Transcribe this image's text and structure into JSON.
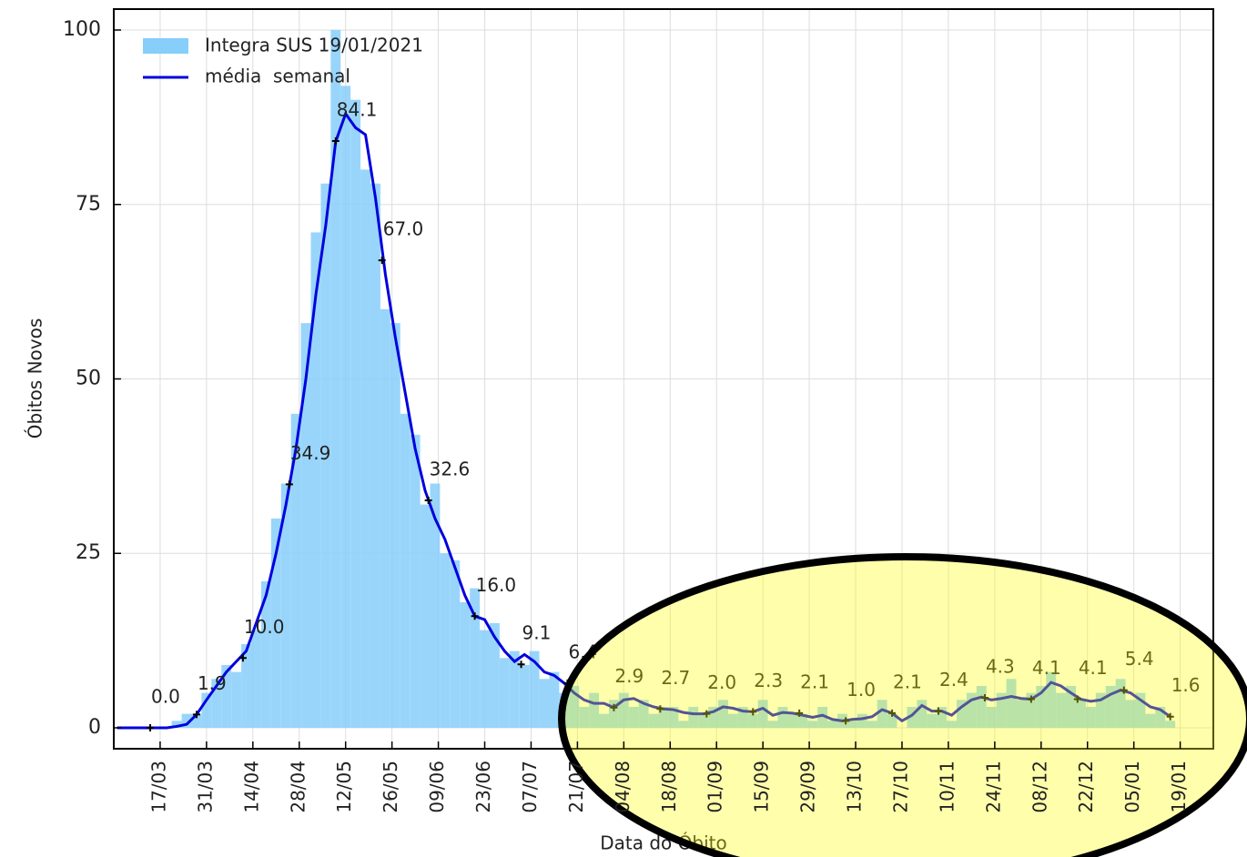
{
  "chart_data": {
    "type": "bar",
    "xlabel": "Data do Óbito",
    "ylabel": "Óbitos Novos",
    "xlim": [
      -14,
      318
    ],
    "ylim": [
      -3,
      103
    ],
    "yticks": [
      0,
      25,
      50,
      75,
      100
    ],
    "xticks": [
      {
        "value": 0,
        "label": "17/03"
      },
      {
        "value": 14,
        "label": "31/03"
      },
      {
        "value": 28,
        "label": "14/04"
      },
      {
        "value": 42,
        "label": "28/04"
      },
      {
        "value": 56,
        "label": "12/05"
      },
      {
        "value": 70,
        "label": "26/05"
      },
      {
        "value": 84,
        "label": "09/06"
      },
      {
        "value": 98,
        "label": "23/06"
      },
      {
        "value": 112,
        "label": "07/07"
      },
      {
        "value": 126,
        "label": "21/07"
      },
      {
        "value": 140,
        "label": "04/08"
      },
      {
        "value": 154,
        "label": "18/08"
      },
      {
        "value": 168,
        "label": "01/09"
      },
      {
        "value": 182,
        "label": "15/09"
      },
      {
        "value": 196,
        "label": "29/09"
      },
      {
        "value": 210,
        "label": "13/10"
      },
      {
        "value": 224,
        "label": "27/10"
      },
      {
        "value": 238,
        "label": "10/11"
      },
      {
        "value": 252,
        "label": "24/11"
      },
      {
        "value": 266,
        "label": "08/12"
      },
      {
        "value": 280,
        "label": "22/12"
      },
      {
        "value": 294,
        "label": "05/01"
      },
      {
        "value": 308,
        "label": "19/01"
      }
    ],
    "grid": true,
    "legend": "upper left",
    "x": [
      -13,
      -10,
      -7,
      -4,
      -1,
      2,
      5,
      8,
      11,
      14,
      17,
      20,
      23,
      26,
      29,
      32,
      35,
      38,
      41,
      44,
      47,
      50,
      53,
      56,
      59,
      62,
      65,
      68,
      71,
      74,
      77,
      80,
      83,
      86,
      89,
      92,
      95,
      98,
      101,
      104,
      107,
      110,
      113,
      116,
      119,
      122,
      125,
      128,
      131,
      134,
      137,
      140,
      143,
      146,
      149,
      152,
      155,
      158,
      161,
      164,
      167,
      170,
      173,
      176,
      179,
      182,
      185,
      188,
      191,
      194,
      197,
      200,
      203,
      206,
      209,
      212,
      215,
      218,
      221,
      224,
      227,
      230,
      233,
      236,
      239,
      242,
      245,
      248,
      251,
      254,
      257,
      260,
      263,
      266,
      269,
      272,
      275,
      278,
      281,
      284,
      287,
      290,
      293,
      296,
      299,
      302,
      305
    ],
    "series": [
      {
        "name": "Integra SUS 19/01/2021",
        "type": "bar",
        "color": "#87cefa",
        "values": [
          0,
          0,
          0,
          0,
          0,
          0,
          1,
          2,
          2,
          5,
          7,
          9,
          8,
          12,
          14,
          21,
          30,
          35,
          45,
          58,
          71,
          78,
          100,
          92,
          90,
          80,
          78,
          60,
          58,
          45,
          42,
          32,
          35,
          25,
          24,
          18,
          20,
          14,
          15,
          10,
          11,
          9,
          11,
          7,
          8,
          5,
          6,
          3,
          5,
          2,
          4,
          5,
          3,
          4,
          2,
          3,
          3,
          1,
          3,
          2,
          3,
          4,
          2,
          3,
          2,
          4,
          1,
          3,
          2,
          2,
          1,
          3,
          1,
          2,
          1,
          2,
          1,
          4,
          2,
          0,
          3,
          4,
          2,
          3,
          1,
          4,
          5,
          6,
          3,
          5,
          7,
          4,
          5,
          6,
          8,
          5,
          6,
          4,
          3,
          5,
          6,
          7,
          4,
          5,
          2,
          3,
          1
        ]
      },
      {
        "name": "média  semanal",
        "type": "line",
        "color": "#0000dd",
        "values": [
          0,
          0,
          0,
          0,
          0,
          0,
          0.2,
          0.5,
          1.9,
          4,
          6,
          8,
          9.5,
          11,
          15,
          19,
          25,
          32,
          40,
          50,
          62,
          72,
          84,
          88,
          86,
          85,
          76,
          65,
          56,
          48,
          40,
          34,
          30,
          27,
          23,
          19,
          16,
          15.5,
          13,
          11,
          9.5,
          10.5,
          9.5,
          8,
          7.5,
          6.4,
          5,
          4,
          3.5,
          3.5,
          2.9,
          4,
          4.2,
          3.5,
          3,
          2.7,
          2.6,
          2.2,
          2,
          2,
          2.3,
          3,
          2.8,
          2.4,
          2.3,
          2.8,
          1.8,
          2.2,
          2.1,
          1.8,
          1.5,
          1.8,
          1.2,
          1,
          1.2,
          1.3,
          1.6,
          2.6,
          2.1,
          1,
          1.8,
          3.2,
          2.4,
          2.4,
          1.8,
          3,
          4,
          4.4,
          4,
          4.2,
          4.5,
          4.2,
          4.1,
          5,
          6.5,
          6,
          5,
          4.1,
          3.8,
          4,
          4.8,
          5.4,
          5,
          4,
          3,
          2.6,
          1.6
        ]
      }
    ],
    "annotations": {
      "x": [
        -3,
        11,
        25,
        39,
        53,
        67,
        81,
        95,
        109,
        123,
        137,
        151,
        165,
        179,
        193,
        207,
        221,
        235,
        249,
        263,
        277,
        291,
        305
      ],
      "values": [
        0,
        1.9,
        10,
        34.9,
        84.1,
        67,
        32.6,
        16,
        9.1,
        6.4,
        2.9,
        2.7,
        2,
        2.3,
        2.1,
        1,
        2.1,
        2.4,
        4.3,
        4.1,
        4.1,
        5.4,
        1.6
      ],
      "value_labels": [
        "0.0",
        "1.9",
        "10.0",
        "34.9",
        "84.1",
        "67.0",
        "32.6",
        "16.0",
        "9.1",
        "6.4",
        "2.9",
        "2.7",
        "2.0",
        "2.3",
        "2.1",
        "1.0",
        "2.1",
        "2.4",
        "4.3",
        "4.1",
        "4.1",
        "5.4",
        "1.6"
      ]
    }
  }
}
